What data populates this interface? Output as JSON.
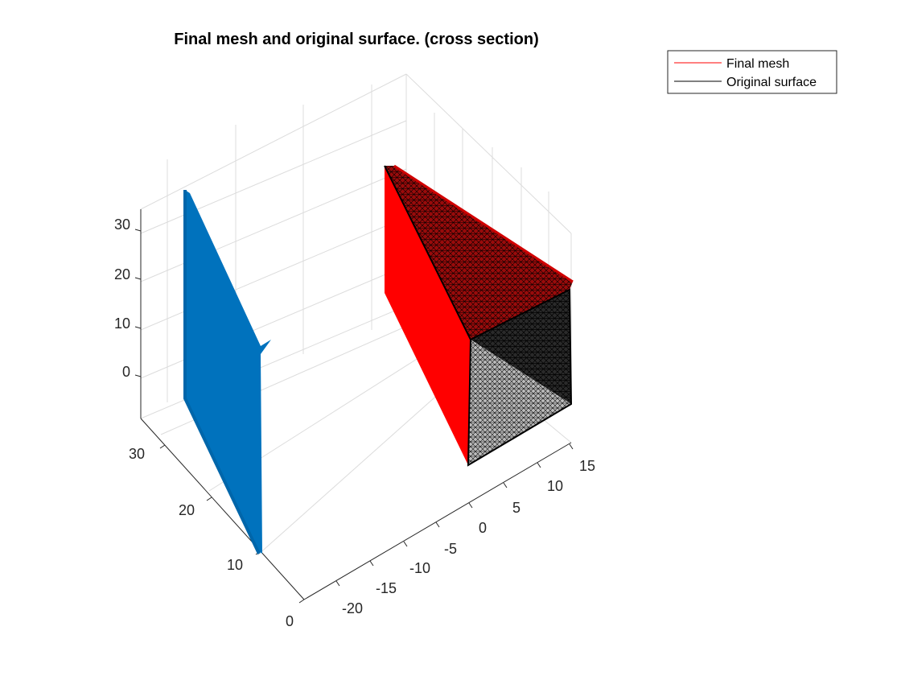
{
  "chart_data": {
    "type": "surface3d",
    "title": "Final mesh and original surface. (cross section)",
    "xlabel": "",
    "ylabel": "",
    "zlabel": "",
    "x_ticks": [
      "-20",
      "-15",
      "-10",
      "-5",
      "0",
      "5",
      "10",
      "15"
    ],
    "y_ticks": [
      "0",
      "10",
      "20",
      "30"
    ],
    "z_ticks": [
      "0",
      "10",
      "20",
      "30"
    ],
    "xlim": [
      -23,
      16
    ],
    "ylim": [
      0,
      36
    ],
    "zlim": [
      -5,
      36
    ],
    "grid": true,
    "legend_position": "top-right",
    "series": [
      {
        "name": "Final mesh",
        "color": "#ff0000",
        "style": "line"
      },
      {
        "name": "Original surface",
        "color": "#000000",
        "style": "line"
      }
    ],
    "scatter_color": "#0072bd"
  }
}
